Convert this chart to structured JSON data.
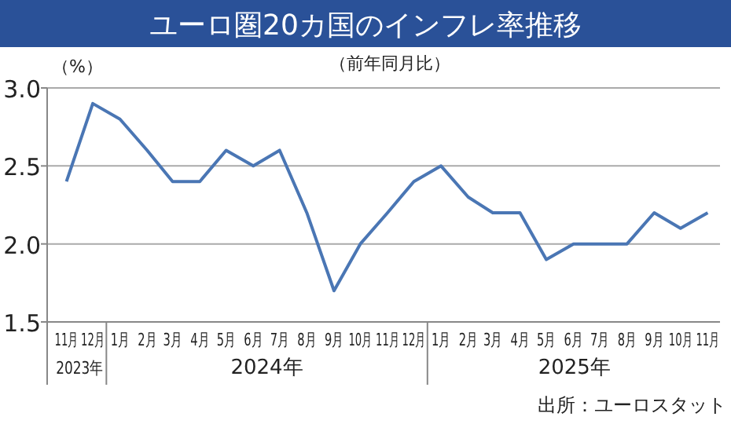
{
  "chart_data": {
    "type": "line",
    "title": "ユーロ圏20カ国のインフレ率推移",
    "subtitle": "（前年同月比）",
    "ylabel": "（%）",
    "x": [
      "2023-11",
      "2023-12",
      "2024-01",
      "2024-02",
      "2024-03",
      "2024-04",
      "2024-05",
      "2024-06",
      "2024-07",
      "2024-08",
      "2024-09",
      "2024-10",
      "2024-11",
      "2024-12",
      "2025-01",
      "2025-02",
      "2025-03",
      "2025-04",
      "2025-05",
      "2025-06",
      "2025-07",
      "2025-08",
      "2025-09",
      "2025-10",
      "2025-11"
    ],
    "xticks": [
      {
        "value": "2023-11",
        "label": "11月"
      },
      {
        "value": "2023-12",
        "label": "12月"
      },
      {
        "value": "2024-01",
        "label": "1月"
      },
      {
        "value": "2024-02",
        "label": "2月"
      },
      {
        "value": "2024-03",
        "label": "3月"
      },
      {
        "value": "2024-04",
        "label": "4月"
      },
      {
        "value": "2024-05",
        "label": "5月"
      },
      {
        "value": "2024-06",
        "label": "6月"
      },
      {
        "value": "2024-07",
        "label": "7月"
      },
      {
        "value": "2024-08",
        "label": "8月"
      },
      {
        "value": "2024-09",
        "label": "9月"
      },
      {
        "value": "2024-10",
        "label": "10月"
      },
      {
        "value": "2024-11",
        "label": "11月"
      },
      {
        "value": "2024-12",
        "label": "12月"
      },
      {
        "value": "2025-01",
        "label": "1月"
      },
      {
        "value": "2025-02",
        "label": "2月"
      },
      {
        "value": "2025-03",
        "label": "3月"
      },
      {
        "value": "2025-04",
        "label": "4月"
      },
      {
        "value": "2025-05",
        "label": "5月"
      },
      {
        "value": "2025-06",
        "label": "6月"
      },
      {
        "value": "2025-07",
        "label": "7月"
      },
      {
        "value": "2025-08",
        "label": "8月"
      },
      {
        "value": "2025-09",
        "label": "9月"
      },
      {
        "value": "2025-10",
        "label": "10月"
      },
      {
        "value": "2025-11",
        "label": "11月"
      }
    ],
    "values": [
      2.4,
      2.9,
      2.8,
      2.6,
      2.4,
      2.4,
      2.6,
      2.5,
      2.6,
      2.2,
      1.7,
      2.0,
      2.2,
      2.4,
      2.5,
      2.3,
      2.2,
      2.2,
      1.9,
      2.0,
      2.0,
      2.0,
      2.2,
      2.1,
      2.2
    ],
    "color": "#4a76b4",
    "xlim": [
      "2023-10-10",
      "2025-11-15"
    ],
    "ylim": [
      1.5,
      3.0
    ],
    "yticks": [
      {
        "value": 1.5,
        "label": "1.5"
      },
      {
        "value": 2.0,
        "label": "2.0"
      },
      {
        "value": 2.5,
        "label": "2.5"
      },
      {
        "value": 3.0,
        "label": "3.0"
      }
    ],
    "grid": "y",
    "marker": "none",
    "line_style": "solid",
    "annotations": [
      "2023年",
      "2024年",
      "2025年",
      "出所：ユーロスタット"
    ]
  }
}
